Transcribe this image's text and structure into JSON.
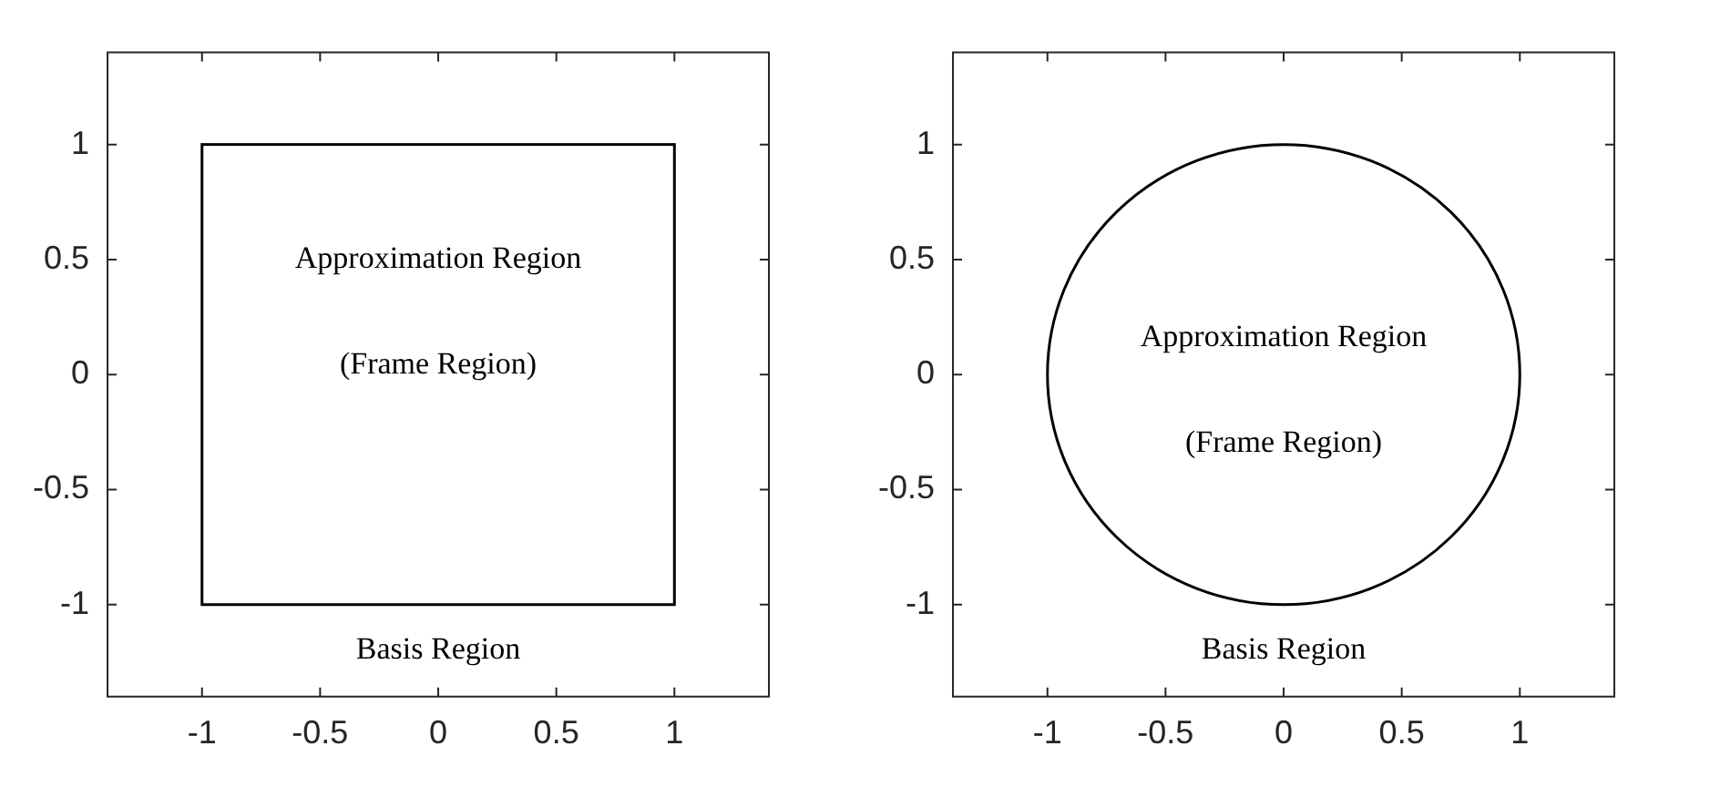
{
  "chart_data": [
    {
      "type": "line",
      "xlim": [
        -1.4,
        1.4
      ],
      "ylim": [
        -1.4,
        1.4
      ],
      "xticks": [
        -1,
        -0.5,
        0,
        0.5,
        1
      ],
      "yticks": [
        -1,
        -0.5,
        0,
        0.5,
        1
      ],
      "grid": false,
      "annotations": [
        "Approximation Region",
        "(Frame Region)",
        "Basis Region"
      ]
    },
    {
      "type": "line",
      "xlim": [
        -1.4,
        1.4
      ],
      "ylim": [
        -1.4,
        1.4
      ],
      "xticks": [
        -1,
        -0.5,
        0,
        0.5,
        1
      ],
      "yticks": [
        -1,
        -0.5,
        0,
        0.5,
        1
      ],
      "grid": false,
      "annotations": [
        "Approximation Region",
        "(Frame Region)",
        "Basis Region"
      ]
    }
  ]
}
